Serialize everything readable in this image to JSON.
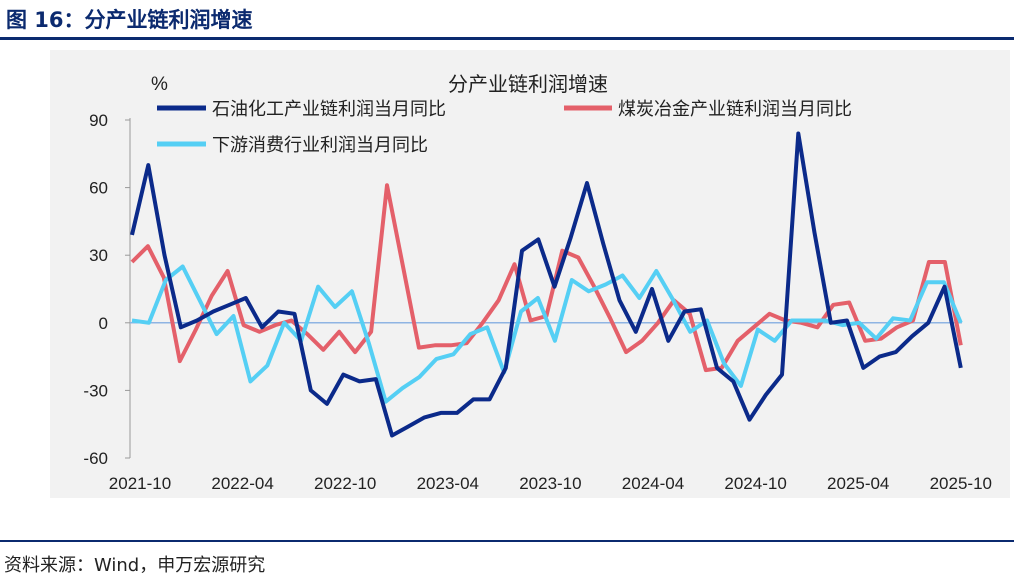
{
  "figure": {
    "title": "图 16：分产业链利润增速",
    "source": "资料来源：Wind，申万宏源研究"
  },
  "chart_data": {
    "type": "line",
    "title": "分产业链利润增速",
    "ylabel": "%",
    "xlabel": "",
    "ylim": [
      -60,
      90
    ],
    "yticks": [
      90,
      60,
      30,
      0,
      -30,
      -60
    ],
    "xticks": [
      "2021-10",
      "2022-04",
      "2022-10",
      "2023-04",
      "2023-10",
      "2024-04",
      "2024-10",
      "2025-04",
      "2025-10"
    ],
    "x_index_range": [
      0,
      48
    ],
    "series": [
      {
        "name": "石油化工产业链利润当月同比",
        "color": "#0b2a8a",
        "values": [
          39,
          70,
          30,
          -2,
          1,
          5,
          8,
          11,
          -2,
          5,
          4,
          -30,
          -36,
          -23,
          -26,
          -25,
          -50,
          -46,
          -42,
          -40,
          -40,
          -34,
          -34,
          -20,
          32,
          37,
          16,
          38,
          62,
          35,
          10,
          -4,
          15,
          -8,
          5,
          6,
          -20,
          -26,
          -43,
          -32,
          -23,
          84,
          40,
          0,
          1,
          -20,
          -15,
          -13,
          -6,
          0,
          16,
          -20
        ]
      },
      {
        "name": "煤炭冶金产业链利润当月同比",
        "color": "#e4606a",
        "values": [
          27,
          34,
          20,
          -17,
          -3,
          12,
          23,
          -1,
          -4,
          -1,
          1,
          -5,
          -12,
          -4,
          -13,
          -4,
          61,
          25,
          -11,
          -10,
          -10,
          -9,
          0,
          10,
          26,
          1,
          3,
          32,
          29,
          16,
          2,
          -13,
          -8,
          0,
          10,
          4,
          -21,
          -20,
          -8,
          -2,
          4,
          1,
          0,
          -2,
          8,
          9,
          -8,
          -7,
          -2,
          1,
          27,
          27,
          -10
        ]
      },
      {
        "name": "下游消费行业利润当月同比",
        "color": "#55cff4",
        "values": [
          1,
          0,
          19,
          25,
          10,
          -5,
          3,
          -26,
          -19,
          0,
          -8,
          16,
          7,
          14,
          -9,
          -35,
          -29,
          -24,
          -16,
          -14,
          -5,
          -2,
          -22,
          5,
          11,
          -8,
          19,
          14,
          17,
          21,
          11,
          23,
          10,
          -4,
          1,
          -18,
          -28,
          -3,
          -8,
          1,
          1,
          1,
          -1,
          0,
          -7,
          2,
          1,
          18,
          18,
          0
        ]
      }
    ]
  }
}
